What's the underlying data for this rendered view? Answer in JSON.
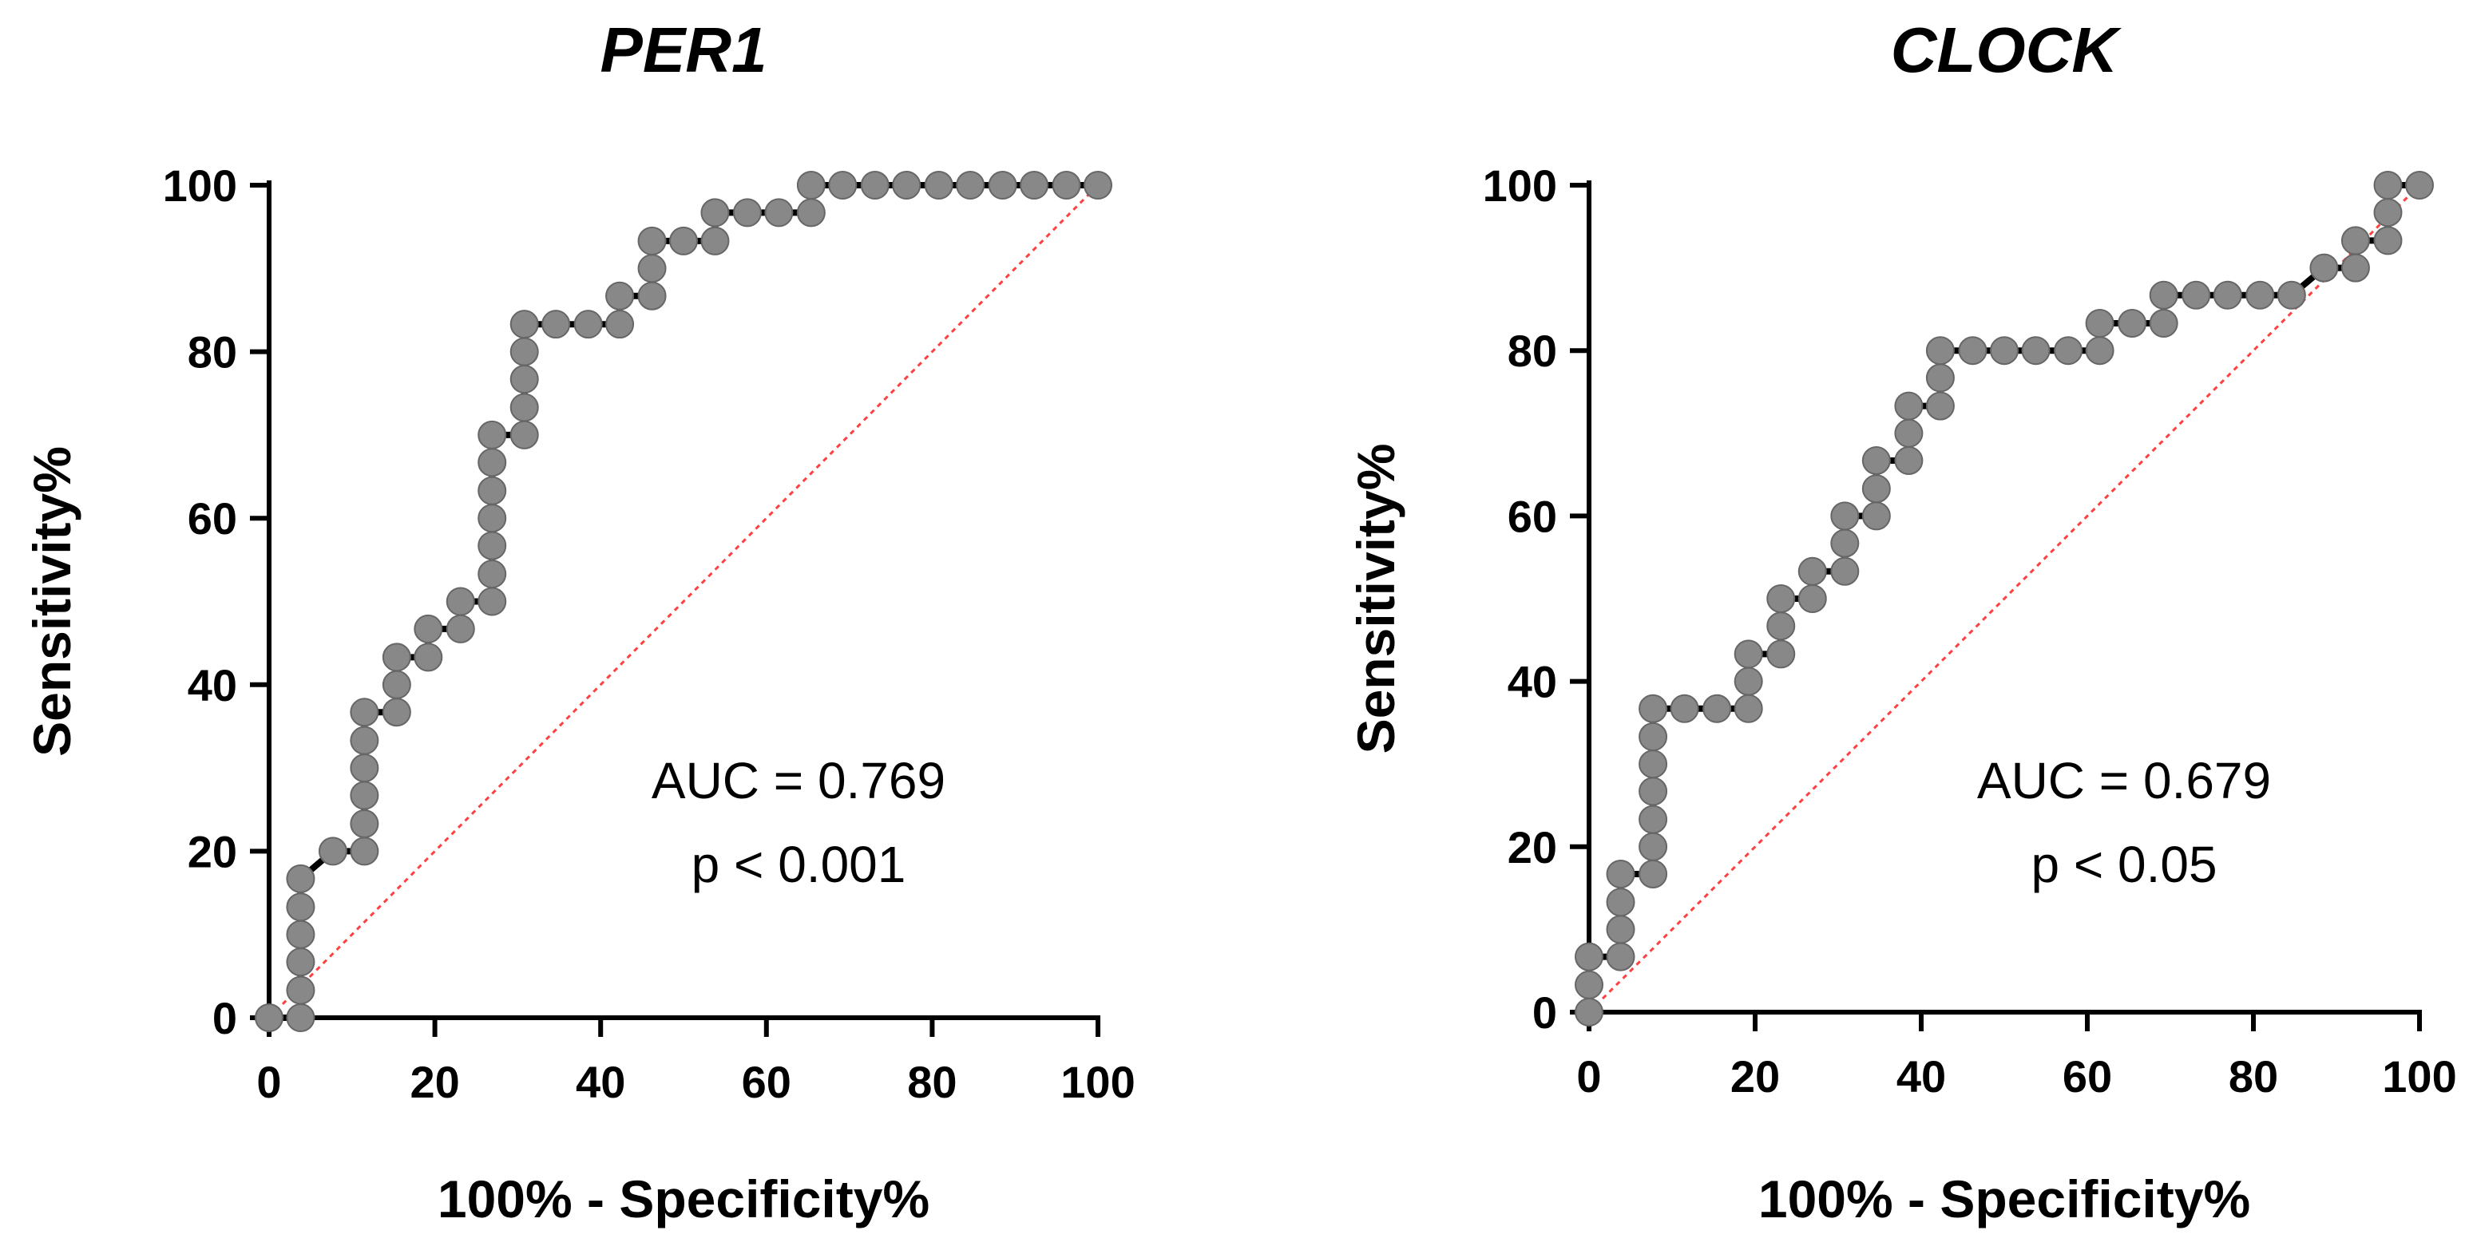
{
  "chart_data": [
    {
      "type": "line",
      "subtype": "roc-step",
      "title": "PER1",
      "xlabel": "100% - Specificity%",
      "ylabel": "Sensitivity%",
      "xlim": [
        0,
        100
      ],
      "ylim": [
        0,
        100
      ],
      "xticks": [
        "0",
        "20",
        "40",
        "60",
        "80",
        "100"
      ],
      "yticks": [
        "0",
        "20",
        "40",
        "60",
        "80",
        "100"
      ],
      "annotation": [
        "AUC = 0.769",
        "p < 0.001"
      ],
      "reference_line": {
        "from": [
          0,
          0
        ],
        "to": [
          100,
          100
        ],
        "color": "#ff4040",
        "style": "dotted"
      },
      "series_color": "#000000",
      "marker_color": "#888888",
      "points": [
        [
          0,
          0
        ],
        [
          3.8,
          0
        ],
        [
          3.8,
          3.3
        ],
        [
          3.8,
          6.7
        ],
        [
          3.8,
          10
        ],
        [
          3.8,
          13.3
        ],
        [
          3.8,
          16.7
        ],
        [
          7.7,
          20
        ],
        [
          11.5,
          20
        ],
        [
          11.5,
          23.3
        ],
        [
          11.5,
          26.7
        ],
        [
          11.5,
          30
        ],
        [
          11.5,
          33.3
        ],
        [
          11.5,
          36.7
        ],
        [
          15.4,
          36.7
        ],
        [
          15.4,
          40
        ],
        [
          15.4,
          43.3
        ],
        [
          19.2,
          43.3
        ],
        [
          19.2,
          46.7
        ],
        [
          23.1,
          46.7
        ],
        [
          23.1,
          50
        ],
        [
          26.9,
          50
        ],
        [
          26.9,
          53.3
        ],
        [
          26.9,
          56.7
        ],
        [
          26.9,
          60
        ],
        [
          26.9,
          63.3
        ],
        [
          26.9,
          66.7
        ],
        [
          26.9,
          70
        ],
        [
          30.8,
          70
        ],
        [
          30.8,
          73.3
        ],
        [
          30.8,
          76.7
        ],
        [
          30.8,
          80
        ],
        [
          30.8,
          83.3
        ],
        [
          34.6,
          83.3
        ],
        [
          38.5,
          83.3
        ],
        [
          42.3,
          83.3
        ],
        [
          42.3,
          86.7
        ],
        [
          46.2,
          86.7
        ],
        [
          46.2,
          90
        ],
        [
          46.2,
          93.3
        ],
        [
          50,
          93.3
        ],
        [
          53.8,
          93.3
        ],
        [
          53.8,
          96.7
        ],
        [
          57.7,
          96.7
        ],
        [
          61.5,
          96.7
        ],
        [
          65.4,
          96.7
        ],
        [
          65.4,
          100
        ],
        [
          69.2,
          100
        ],
        [
          73.1,
          100
        ],
        [
          76.9,
          100
        ],
        [
          80.8,
          100
        ],
        [
          84.6,
          100
        ],
        [
          88.5,
          100
        ],
        [
          92.3,
          100
        ],
        [
          96.2,
          100
        ],
        [
          100,
          100
        ]
      ]
    },
    {
      "type": "line",
      "subtype": "roc-step",
      "title": "CLOCK",
      "xlabel": "100% - Specificity%",
      "ylabel": "Sensitivity%",
      "xlim": [
        0,
        100
      ],
      "ylim": [
        0,
        100
      ],
      "xticks": [
        "0",
        "20",
        "40",
        "60",
        "80",
        "100"
      ],
      "yticks": [
        "0",
        "20",
        "40",
        "60",
        "80",
        "100"
      ],
      "annotation": [
        "AUC = 0.679",
        "p < 0.05"
      ],
      "reference_line": {
        "from": [
          0,
          0
        ],
        "to": [
          100,
          100
        ],
        "color": "#ff4040",
        "style": "dotted"
      },
      "series_color": "#000000",
      "marker_color": "#888888",
      "points": [
        [
          0,
          0
        ],
        [
          0,
          3.3
        ],
        [
          0,
          6.7
        ],
        [
          3.8,
          6.7
        ],
        [
          3.8,
          10
        ],
        [
          3.8,
          13.3
        ],
        [
          3.8,
          16.7
        ],
        [
          7.7,
          16.7
        ],
        [
          7.7,
          20
        ],
        [
          7.7,
          23.3
        ],
        [
          7.7,
          26.7
        ],
        [
          7.7,
          30
        ],
        [
          7.7,
          33.3
        ],
        [
          7.7,
          36.7
        ],
        [
          11.5,
          36.7
        ],
        [
          15.4,
          36.7
        ],
        [
          19.2,
          36.7
        ],
        [
          19.2,
          40
        ],
        [
          19.2,
          43.3
        ],
        [
          23.1,
          43.3
        ],
        [
          23.1,
          46.7
        ],
        [
          23.1,
          50
        ],
        [
          26.9,
          50
        ],
        [
          26.9,
          53.3
        ],
        [
          30.8,
          53.3
        ],
        [
          30.8,
          56.7
        ],
        [
          30.8,
          60
        ],
        [
          34.6,
          60
        ],
        [
          34.6,
          63.3
        ],
        [
          34.6,
          66.7
        ],
        [
          38.5,
          66.7
        ],
        [
          38.5,
          70
        ],
        [
          38.5,
          73.3
        ],
        [
          42.3,
          73.3
        ],
        [
          42.3,
          76.7
        ],
        [
          42.3,
          80
        ],
        [
          46.2,
          80
        ],
        [
          50,
          80
        ],
        [
          53.8,
          80
        ],
        [
          57.7,
          80
        ],
        [
          61.5,
          80
        ],
        [
          61.5,
          83.3
        ],
        [
          65.4,
          83.3
        ],
        [
          69.2,
          83.3
        ],
        [
          69.2,
          86.7
        ],
        [
          73.1,
          86.7
        ],
        [
          76.9,
          86.7
        ],
        [
          80.8,
          86.7
        ],
        [
          84.6,
          86.7
        ],
        [
          88.5,
          90
        ],
        [
          92.3,
          90
        ],
        [
          92.3,
          93.3
        ],
        [
          96.2,
          93.3
        ],
        [
          96.2,
          96.7
        ],
        [
          96.2,
          100
        ],
        [
          100,
          100
        ]
      ]
    }
  ]
}
